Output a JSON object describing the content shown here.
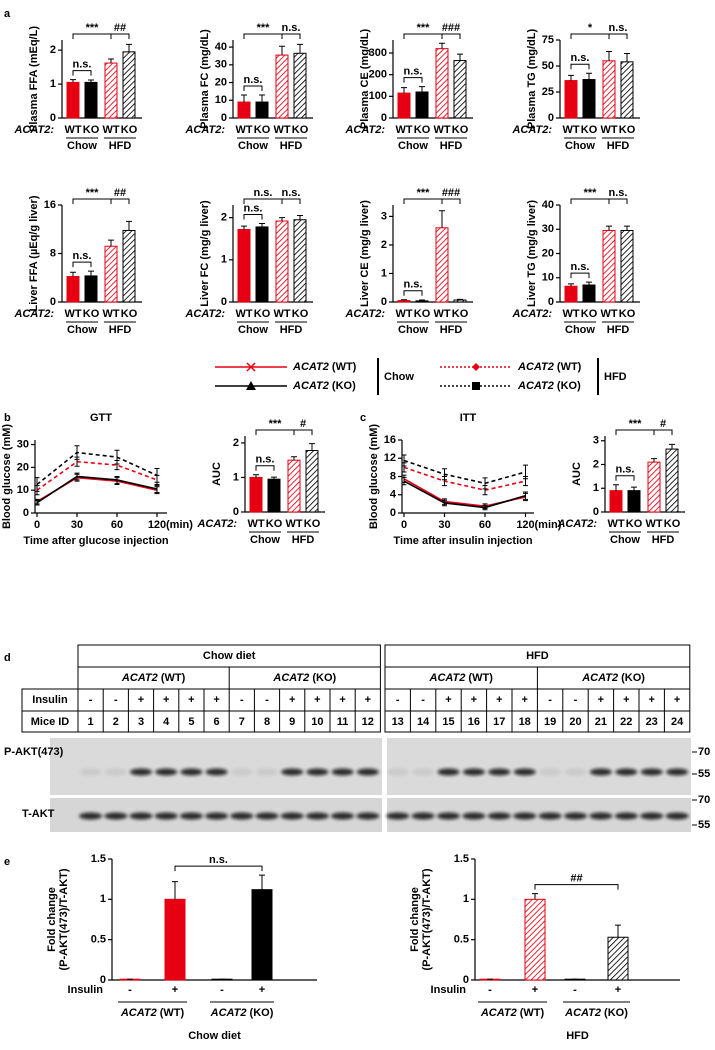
{
  "panel_labels": [
    "a",
    "b",
    "c",
    "d",
    "e"
  ],
  "legend": {
    "entries": [
      {
        "name": "ACAT2 (WT)",
        "color": "#e60012",
        "line": "solid",
        "marker": "x"
      },
      {
        "name": "ACAT2 (KO)",
        "color": "#000000",
        "line": "solid",
        "marker": "triangle"
      },
      {
        "name": "ACAT2 (WT)",
        "color": "#e60012",
        "line": "dashed",
        "marker": "diamond"
      },
      {
        "name": "ACAT2 (KO)",
        "color": "#000000",
        "line": "dashed",
        "marker": "square"
      }
    ],
    "groups": [
      "Chow",
      "HFD"
    ]
  },
  "chart_data": [
    {
      "type": "bar",
      "ylabel": "Plasma FFA (mEq/L)",
      "category_prefix": "ACAT2:",
      "categories": [
        "WT",
        "KO",
        "WT",
        "KO"
      ],
      "groups": [
        "Chow",
        "HFD"
      ],
      "values": [
        1.05,
        1.05,
        1.62,
        1.95
      ],
      "errors": [
        0.08,
        0.07,
        0.12,
        0.22
      ],
      "colors": [
        "#e60012",
        "#000000",
        "#e60012",
        "#000000"
      ],
      "hatched": [
        false,
        false,
        true,
        true
      ],
      "ylim": [
        0,
        2.3
      ],
      "yticks": [
        0,
        1,
        2
      ],
      "annotations": {
        "chow": "n.s.",
        "diet": "***",
        "hfd": "##"
      }
    },
    {
      "type": "bar",
      "ylabel": "Plasma FC (mg/dL)",
      "category_prefix": "ACAT2:",
      "categories": [
        "WT",
        "KO",
        "WT",
        "KO"
      ],
      "groups": [
        "Chow",
        "HFD"
      ],
      "values": [
        9,
        9,
        35.5,
        36.5
      ],
      "errors": [
        4,
        4,
        5,
        5
      ],
      "colors": [
        "#e60012",
        "#000000",
        "#e60012",
        "#000000"
      ],
      "hatched": [
        false,
        false,
        true,
        true
      ],
      "ylim": [
        0,
        44
      ],
      "yticks": [
        0,
        10,
        20,
        30,
        40
      ],
      "annotations": {
        "chow": "n.s.",
        "diet": "***",
        "hfd": "n.s."
      }
    },
    {
      "type": "bar",
      "ylabel": "Plasma CE (mg/dL)",
      "category_prefix": "ACAT2:",
      "categories": [
        "WT",
        "KO",
        "WT",
        "KO"
      ],
      "groups": [
        "Chow",
        "HFD"
      ],
      "values": [
        115,
        120,
        320,
        265
      ],
      "errors": [
        25,
        25,
        25,
        30
      ],
      "colors": [
        "#e60012",
        "#000000",
        "#e60012",
        "#000000"
      ],
      "hatched": [
        false,
        false,
        true,
        true
      ],
      "ylim": [
        0,
        360
      ],
      "yticks": [
        0,
        100,
        200,
        300
      ],
      "annotations": {
        "chow": "n.s.",
        "diet": "***",
        "hfd": "###"
      }
    },
    {
      "type": "bar",
      "ylabel": "Plasma TG (mg/dL)",
      "category_prefix": "ACAT2:",
      "categories": [
        "WT",
        "KO",
        "WT",
        "KO"
      ],
      "groups": [
        "Chow",
        "HFD"
      ],
      "values": [
        36,
        37,
        55,
        54
      ],
      "errors": [
        5,
        6,
        9,
        8
      ],
      "colors": [
        "#e60012",
        "#000000",
        "#e60012",
        "#000000"
      ],
      "hatched": [
        false,
        false,
        true,
        true
      ],
      "ylim": [
        0,
        75
      ],
      "yticks": [
        0,
        25,
        50,
        75
      ],
      "annotations": {
        "chow": "n.s.",
        "diet": "*",
        "hfd": "n.s."
      }
    },
    {
      "type": "bar",
      "ylabel": "Liver FFA (µEq/g liver)",
      "category_prefix": "ACAT2:",
      "categories": [
        "WT",
        "KO",
        "WT",
        "KO"
      ],
      "groups": [
        "Chow",
        "HFD"
      ],
      "values": [
        4.2,
        4.3,
        9.2,
        11.8
      ],
      "errors": [
        0.7,
        0.8,
        1.0,
        1.5
      ],
      "colors": [
        "#e60012",
        "#000000",
        "#e60012",
        "#000000"
      ],
      "hatched": [
        false,
        false,
        true,
        true
      ],
      "ylim": [
        0,
        16
      ],
      "yticks": [
        0,
        8,
        16
      ],
      "annotations": {
        "chow": "n.s.",
        "diet": "***",
        "hfd": "##"
      }
    },
    {
      "type": "bar",
      "ylabel": "Liver FC (mg/g liver)",
      "category_prefix": "ACAT2:",
      "categories": [
        "WT",
        "KO",
        "WT",
        "KO"
      ],
      "groups": [
        "Chow",
        "HFD"
      ],
      "values": [
        1.72,
        1.78,
        1.92,
        1.95
      ],
      "errors": [
        0.08,
        0.08,
        0.08,
        0.1
      ],
      "colors": [
        "#e60012",
        "#000000",
        "#e60012",
        "#000000"
      ],
      "hatched": [
        false,
        false,
        true,
        true
      ],
      "ylim": [
        0,
        2.3
      ],
      "yticks": [
        0,
        1,
        2
      ],
      "annotations": {
        "chow": "n.s.",
        "diet": "n.s.",
        "hfd": "n.s."
      }
    },
    {
      "type": "bar",
      "ylabel": "Liver CE (mg/g liver)",
      "category_prefix": "ACAT2:",
      "categories": [
        "WT",
        "KO",
        "WT",
        "KO"
      ],
      "groups": [
        "Chow",
        "HFD"
      ],
      "values": [
        0.05,
        0.04,
        2.6,
        0.07
      ],
      "errors": [
        0.03,
        0.03,
        0.6,
        0.02
      ],
      "colors": [
        "#e60012",
        "#000000",
        "#e60012",
        "#000000"
      ],
      "hatched": [
        false,
        false,
        true,
        true
      ],
      "ylim": [
        0,
        3.4
      ],
      "yticks": [
        0,
        1,
        2,
        3
      ],
      "annotations": {
        "chow": "n.s.",
        "diet": "***",
        "hfd": "###"
      }
    },
    {
      "type": "bar",
      "ylabel": "Liver TG (mg/g liver)",
      "category_prefix": "ACAT2:",
      "categories": [
        "WT",
        "KO",
        "WT",
        "KO"
      ],
      "groups": [
        "Chow",
        "HFD"
      ],
      "values": [
        6.5,
        7,
        29.5,
        29.5
      ],
      "errors": [
        1,
        1.2,
        1.8,
        1.8
      ],
      "colors": [
        "#e60012",
        "#000000",
        "#e60012",
        "#000000"
      ],
      "hatched": [
        false,
        false,
        true,
        true
      ],
      "ylim": [
        0,
        40
      ],
      "yticks": [
        0,
        10,
        20,
        30,
        40
      ],
      "annotations": {
        "chow": "n.s.",
        "diet": "***",
        "hfd": "n.s."
      }
    },
    {
      "type": "line",
      "title": "GTT",
      "ylabel": "Blood glucose (mM)",
      "xlabel": "Time after glucose injection",
      "x_unit": "(min)",
      "categories": [
        "0",
        "30",
        "60",
        "120"
      ],
      "ylim": [
        0,
        32
      ],
      "yticks": [
        0,
        10,
        20,
        30
      ],
      "series": [
        {
          "color": "#e60012",
          "line": "solid",
          "values": [
            5,
            15.5,
            14,
            10
          ],
          "errors": [
            1,
            1.5,
            1.5,
            1.5
          ]
        },
        {
          "color": "#000000",
          "line": "solid",
          "values": [
            4.5,
            16,
            14.5,
            10.5
          ],
          "errors": [
            1,
            1.5,
            1.5,
            1.5
          ]
        },
        {
          "color": "#e60012",
          "line": "dashed",
          "values": [
            10,
            22.5,
            21,
            14.5
          ],
          "errors": [
            2,
            2,
            2,
            2
          ]
        },
        {
          "color": "#000000",
          "line": "dashed",
          "values": [
            12.5,
            26.5,
            24.5,
            16.5
          ],
          "errors": [
            3,
            3,
            3,
            3
          ]
        }
      ]
    },
    {
      "type": "bar",
      "ylabel": "AUC",
      "category_prefix": "ACAT2:",
      "categories": [
        "WT",
        "KO",
        "WT",
        "KO"
      ],
      "groups": [
        "Chow",
        "HFD"
      ],
      "values": [
        1.0,
        0.95,
        1.5,
        1.78
      ],
      "errors": [
        0.08,
        0.06,
        0.1,
        0.2
      ],
      "colors": [
        "#e60012",
        "#000000",
        "#e60012",
        "#000000"
      ],
      "hatched": [
        false,
        false,
        true,
        true
      ],
      "ylim": [
        0,
        2.2
      ],
      "yticks": [
        0,
        1,
        2
      ],
      "annotations": {
        "chow": "n.s.",
        "diet": "***",
        "hfd": "#"
      }
    },
    {
      "type": "line",
      "title": "ITT",
      "ylabel": "Blood glucose (mM)",
      "xlabel": "Time after insulin injection",
      "x_unit": "(min)",
      "categories": [
        "0",
        "30",
        "60",
        "120"
      ],
      "ylim": [
        0,
        16
      ],
      "yticks": [
        0,
        4,
        8,
        12,
        16
      ],
      "series": [
        {
          "color": "#e60012",
          "line": "solid",
          "values": [
            7.5,
            2.5,
            1.5,
            3.5
          ],
          "errors": [
            0.8,
            0.6,
            0.5,
            0.8
          ]
        },
        {
          "color": "#000000",
          "line": "solid",
          "values": [
            7,
            2.2,
            1.2,
            3.8
          ],
          "errors": [
            0.8,
            0.6,
            0.5,
            0.8
          ]
        },
        {
          "color": "#e60012",
          "line": "dashed",
          "values": [
            10,
            7,
            5,
            7
          ],
          "errors": [
            1,
            1,
            1,
            1
          ]
        },
        {
          "color": "#000000",
          "line": "dashed",
          "values": [
            11.5,
            8.5,
            6.5,
            9
          ],
          "errors": [
            1.2,
            1.2,
            1.2,
            1.5
          ]
        }
      ]
    },
    {
      "type": "bar",
      "ylabel": "AUC",
      "category_prefix": "ACAT2:",
      "categories": [
        "WT",
        "KO",
        "WT",
        "KO"
      ],
      "groups": [
        "Chow",
        "HFD"
      ],
      "values": [
        0.9,
        0.9,
        2.1,
        2.65
      ],
      "errors": [
        0.25,
        0.15,
        0.15,
        0.2
      ],
      "colors": [
        "#e60012",
        "#000000",
        "#e60012",
        "#000000"
      ],
      "hatched": [
        false,
        false,
        true,
        true
      ],
      "ylim": [
        0,
        3.2
      ],
      "yticks": [
        0,
        1,
        2,
        3
      ],
      "annotations": {
        "chow": "n.s.",
        "diet": "***",
        "hfd": "#"
      }
    },
    {
      "type": "bar",
      "ylabel": [
        "Fold change",
        "(P-AKT(473)/T-AKT)"
      ],
      "category_prefix": "Insulin",
      "categories": [
        "-",
        "+",
        "-",
        "+"
      ],
      "groups": [
        "ACAT2 (WT)",
        "ACAT2 (KO)"
      ],
      "xlabel": "Chow diet",
      "values": [
        0.01,
        1.0,
        0.01,
        1.12
      ],
      "errors": [
        0,
        0.22,
        0,
        0.18
      ],
      "colors": [
        "#e60012",
        "#e60012",
        "#000000",
        "#000000"
      ],
      "hatched": [
        false,
        false,
        false,
        false
      ],
      "ylim": [
        0,
        1.5
      ],
      "yticks": [
        0,
        0.5,
        1,
        1.5
      ],
      "annotations": {
        "insulin": "n.s."
      }
    },
    {
      "type": "bar",
      "ylabel": [
        "Fold change",
        "(P-AKT(473)/T-AKT)"
      ],
      "category_prefix": "Insulin",
      "categories": [
        "-",
        "+",
        "-",
        "+"
      ],
      "groups": [
        "ACAT2 (WT)",
        "ACAT2 (KO)"
      ],
      "xlabel": "HFD",
      "values": [
        0.01,
        1.0,
        0.01,
        0.53
      ],
      "errors": [
        0,
        0.07,
        0,
        0.15
      ],
      "colors": [
        "#e60012",
        "#e60012",
        "#000000",
        "#000000"
      ],
      "hatched": [
        true,
        true,
        true,
        true
      ],
      "ylim": [
        0,
        1.5
      ],
      "yticks": [
        0,
        0.5,
        1,
        1.5
      ],
      "annotations": {
        "insulin": "##"
      }
    }
  ],
  "blot": {
    "diets": [
      {
        "name": "Chow diet",
        "genotypes": [
          "ACAT2 (WT)",
          "ACAT2 (KO)"
        ]
      },
      {
        "name": "HFD",
        "genotypes": [
          "ACAT2 (WT)",
          "ACAT2 (KO)"
        ]
      }
    ],
    "row_labels": [
      "Insulin",
      "Mice ID"
    ],
    "insulin": [
      "-",
      "-",
      "+",
      "+",
      "+",
      "+",
      "-",
      "-",
      "+",
      "+",
      "+",
      "+",
      "-",
      "-",
      "+",
      "+",
      "+",
      "+",
      "-",
      "-",
      "+",
      "+",
      "+",
      "+"
    ],
    "mice_id": [
      1,
      2,
      3,
      4,
      5,
      6,
      7,
      8,
      9,
      10,
      11,
      12,
      13,
      14,
      15,
      16,
      17,
      18,
      19,
      20,
      21,
      22,
      23,
      24
    ],
    "bands": [
      {
        "name": "P-AKT(473)",
        "markers": [
          70,
          55
        ]
      },
      {
        "name": "T-AKT",
        "markers": [
          70,
          55
        ]
      }
    ]
  }
}
